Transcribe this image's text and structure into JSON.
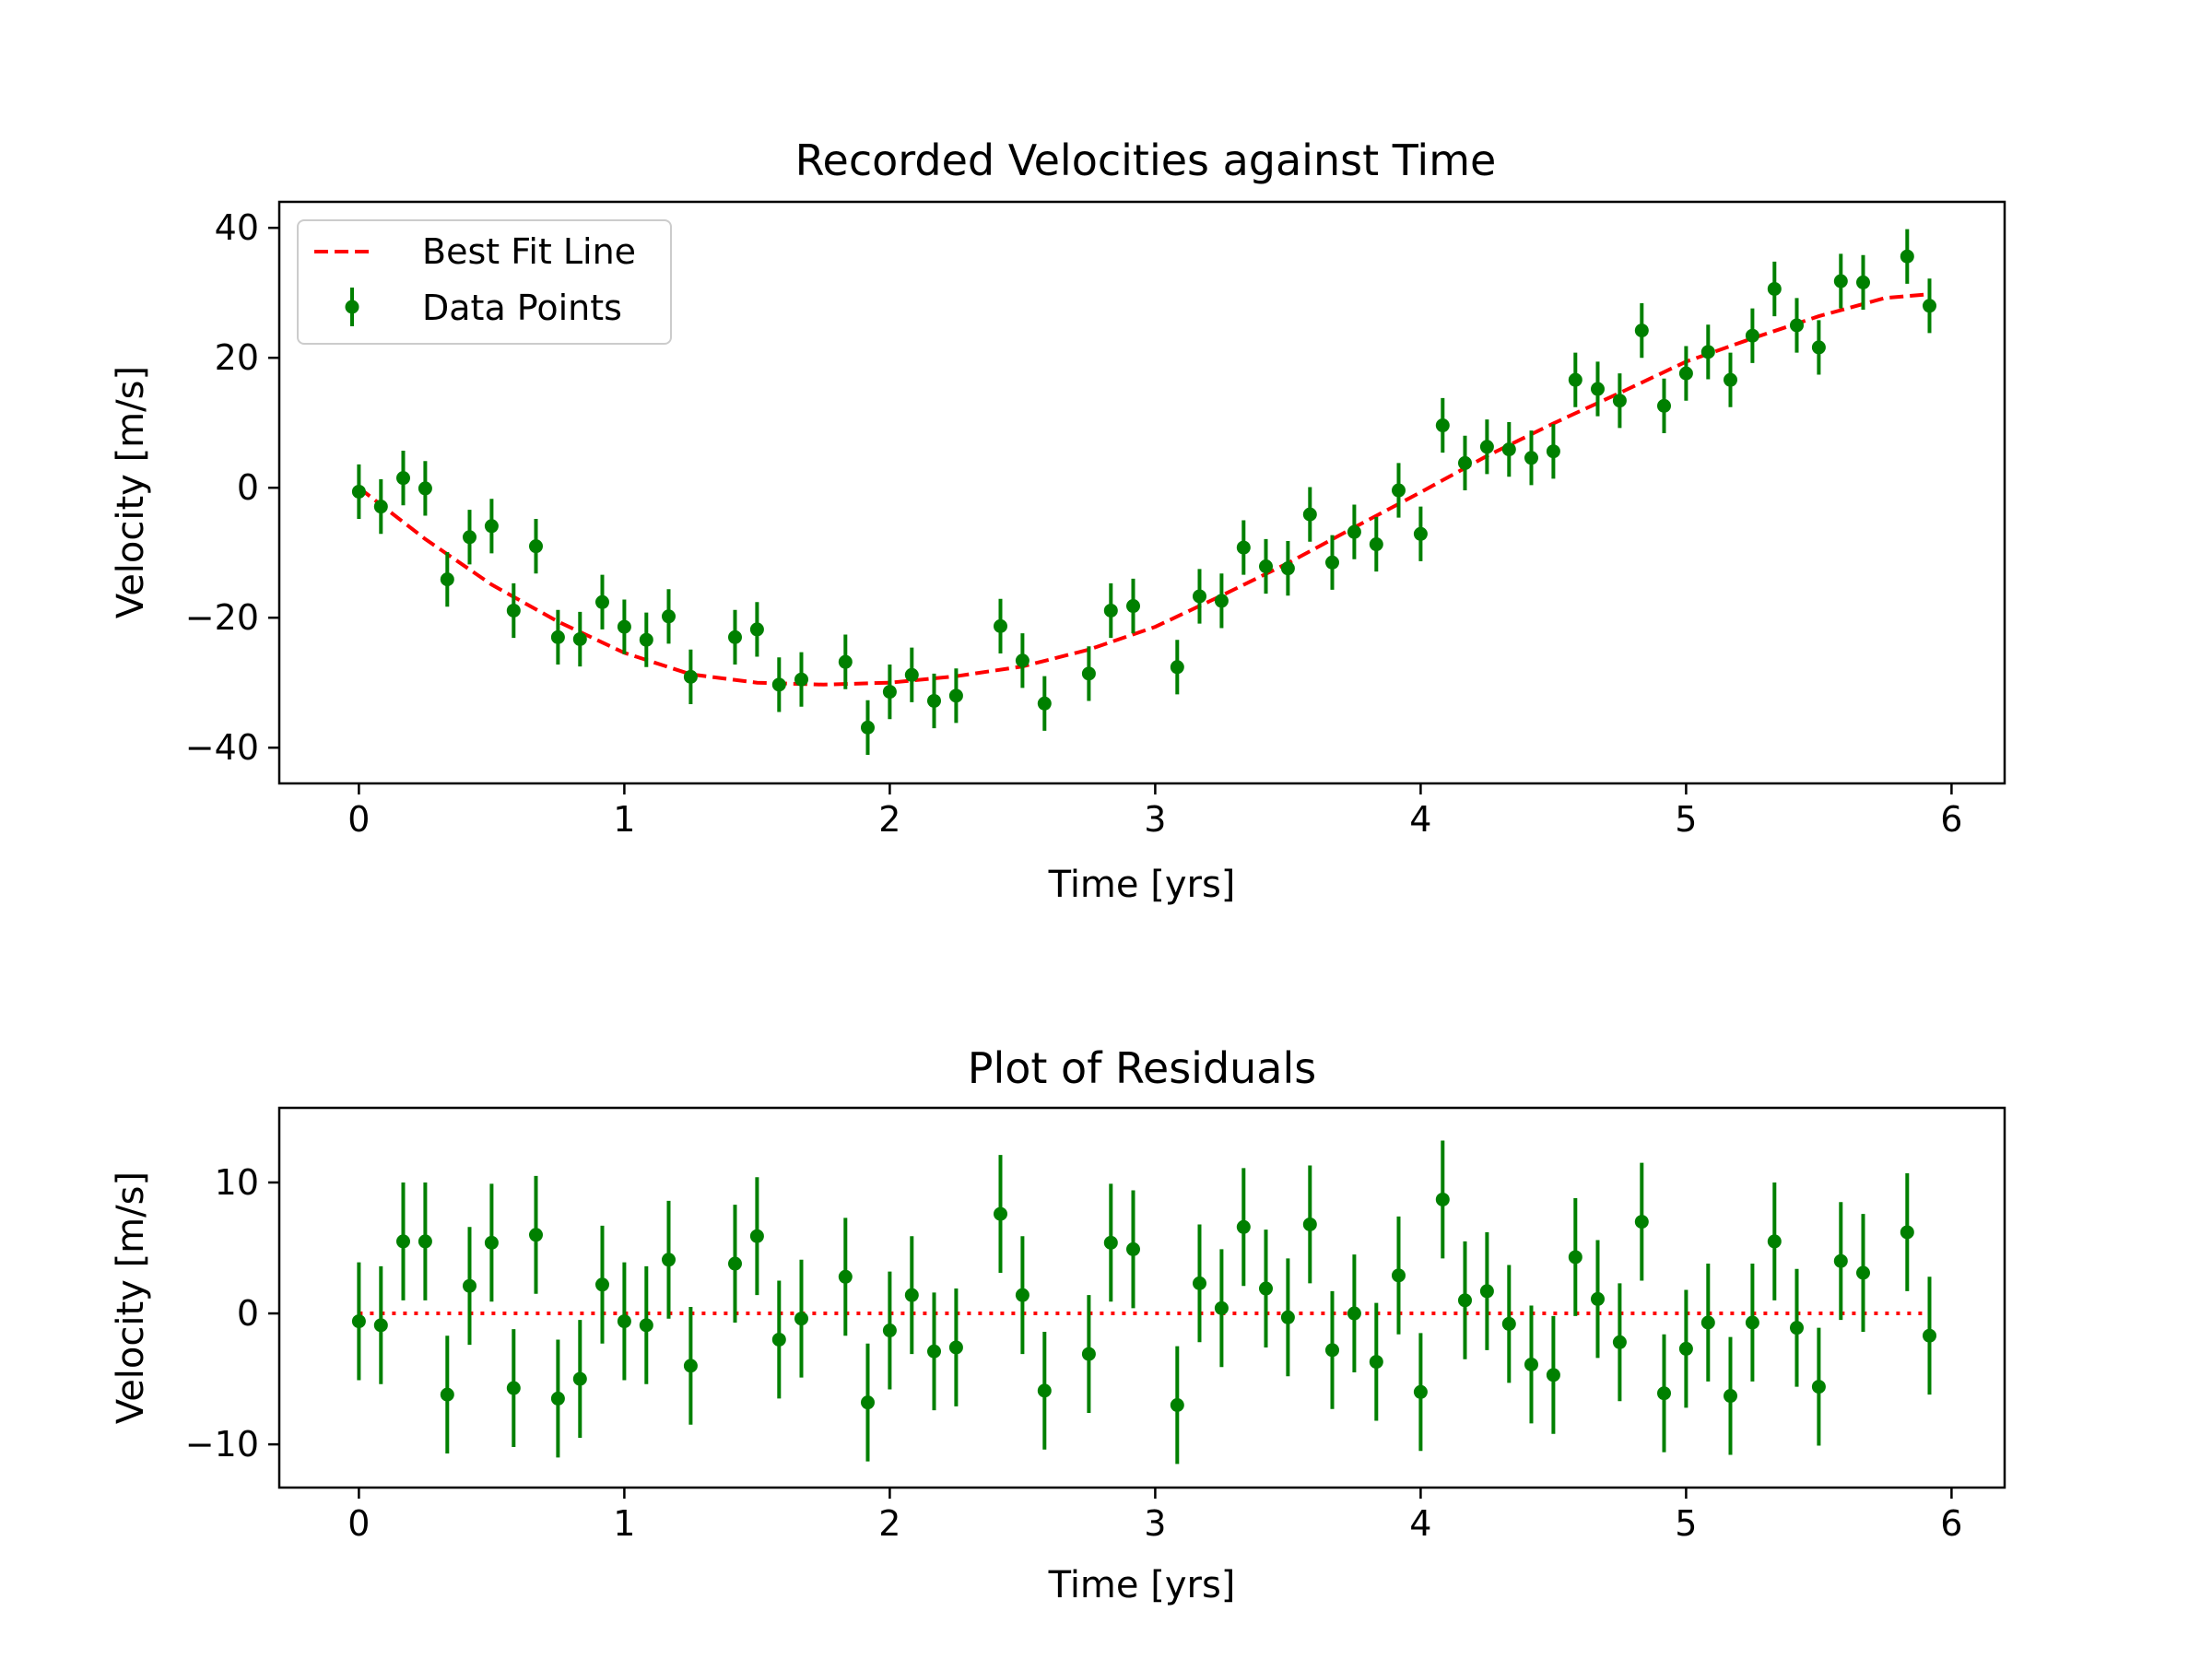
{
  "chart_data": [
    {
      "type": "scatter",
      "title": "Recorded Velocities against Time",
      "xlabel": "Time [yrs]",
      "ylabel": "Velocity [m/s]",
      "xlim": [
        -0.3,
        6.2
      ],
      "ylim": [
        -45.5,
        44
      ],
      "xticks": [
        0,
        1,
        2,
        3,
        4,
        5,
        6
      ],
      "xtick_labels": [
        "0",
        "1",
        "2",
        "3",
        "4",
        "5",
        "6"
      ],
      "yticks": [
        -40,
        -20,
        0,
        20,
        40
      ],
      "ytick_labels": [
        "−40",
        "−20",
        "0",
        "20",
        "40"
      ],
      "grid": false,
      "legend_position": "top-left",
      "series": [
        {
          "name": "Best Fit Line",
          "kind": "line",
          "style": "dashed",
          "color": "#ff0000",
          "x": [
            0,
            0.25,
            0.5,
            0.75,
            1.0,
            1.25,
            1.5,
            1.75,
            2.0,
            2.25,
            2.5,
            2.75,
            3.0,
            3.25,
            3.5,
            3.75,
            4.0,
            4.25,
            4.5,
            4.75,
            5.0,
            5.25,
            5.5,
            5.75,
            5.92
          ],
          "y": [
            0,
            -7.9,
            -14.9,
            -20.6,
            -25.4,
            -28.7,
            -30.0,
            -30.3,
            -30.0,
            -29.0,
            -27.5,
            -24.9,
            -21.4,
            -16.6,
            -11.6,
            -6.1,
            -0.7,
            4.9,
            9.9,
            14.6,
            19.4,
            23.0,
            26.4,
            29.2,
            29.8
          ]
        },
        {
          "name": "Data Points",
          "kind": "errorbar",
          "color": "#008000",
          "x": [
            0,
            0.083,
            0.167,
            0.25,
            0.333,
            0.417,
            0.5,
            0.583,
            0.667,
            0.75,
            0.833,
            0.917,
            1.0,
            1.083,
            1.167,
            1.25,
            1.417,
            1.5,
            1.583,
            1.667,
            1.833,
            1.917,
            2.0,
            2.083,
            2.167,
            2.25,
            2.417,
            2.5,
            2.583,
            2.75,
            2.833,
            2.917,
            3.083,
            3.167,
            3.25,
            3.333,
            3.417,
            3.5,
            3.583,
            3.667,
            3.75,
            3.833,
            3.917,
            4.0,
            4.083,
            4.167,
            4.25,
            4.333,
            4.417,
            4.5,
            4.583,
            4.667,
            4.75,
            4.833,
            4.917,
            5.0,
            5.083,
            5.167,
            5.25,
            5.333,
            5.417,
            5.5,
            5.583,
            5.667,
            5.833,
            5.917
          ],
          "y": [
            -0.6,
            -2.9,
            1.5,
            -0.1,
            -14.1,
            -7.6,
            -5.9,
            -18.9,
            -9.0,
            -23.0,
            -23.3,
            -17.6,
            -21.4,
            -23.4,
            -19.8,
            -29.1,
            -23.0,
            -21.8,
            -30.3,
            -29.5,
            -26.8,
            -36.9,
            -31.4,
            -28.8,
            -32.8,
            -32.0,
            -21.3,
            -26.6,
            -33.2,
            -28.6,
            -18.9,
            -18.2,
            -27.6,
            -16.7,
            -17.4,
            -9.2,
            -12.1,
            -12.4,
            -4.1,
            -11.5,
            -6.8,
            -8.7,
            -0.4,
            -7.1,
            9.6,
            3.8,
            6.3,
            5.9,
            4.6,
            5.6,
            16.6,
            15.2,
            13.4,
            24.2,
            12.6,
            17.6,
            20.9,
            16.6,
            23.4,
            30.6,
            25.0,
            21.6,
            31.8,
            31.6,
            35.6,
            28.0
          ],
          "yerr": 4.2
        }
      ]
    },
    {
      "type": "scatter",
      "title": "Plot of Residuals",
      "xlabel": "Time [yrs]",
      "ylabel": "Velocity [m/s]",
      "xlim": [
        -0.3,
        6.2
      ],
      "ylim": [
        -13.3,
        15.7
      ],
      "xticks": [
        0,
        1,
        2,
        3,
        4,
        5,
        6
      ],
      "xtick_labels": [
        "0",
        "1",
        "2",
        "3",
        "4",
        "5",
        "6"
      ],
      "yticks": [
        -10,
        0,
        10
      ],
      "ytick_labels": [
        "−10",
        "0",
        "10"
      ],
      "grid": false,
      "series": [
        {
          "kind": "line",
          "style": "dotted",
          "color": "#ff0000",
          "x": [
            0,
            5.92
          ],
          "y": [
            0,
            0
          ]
        },
        {
          "kind": "errorbar",
          "color": "#008000",
          "x": [
            0,
            0.083,
            0.167,
            0.25,
            0.333,
            0.417,
            0.5,
            0.583,
            0.667,
            0.75,
            0.833,
            0.917,
            1.0,
            1.083,
            1.167,
            1.25,
            1.417,
            1.5,
            1.583,
            1.667,
            1.833,
            1.917,
            2.0,
            2.083,
            2.167,
            2.25,
            2.417,
            2.5,
            2.583,
            2.75,
            2.833,
            2.917,
            3.083,
            3.167,
            3.25,
            3.333,
            3.417,
            3.5,
            3.583,
            3.667,
            3.75,
            3.833,
            3.917,
            4.0,
            4.083,
            4.167,
            4.25,
            4.333,
            4.417,
            4.5,
            4.583,
            4.667,
            4.75,
            4.833,
            4.917,
            5.0,
            5.083,
            5.167,
            5.25,
            5.333,
            5.417,
            5.5,
            5.583,
            5.667,
            5.833,
            5.917
          ],
          "y": [
            -0.6,
            -0.9,
            5.5,
            5.5,
            -6.2,
            2.1,
            5.4,
            -5.7,
            6.0,
            -6.5,
            -5.0,
            2.2,
            -0.6,
            -0.9,
            4.1,
            -4.0,
            3.8,
            5.9,
            -2.0,
            -0.4,
            2.8,
            -6.8,
            -1.3,
            1.4,
            -2.9,
            -2.6,
            7.6,
            1.4,
            -5.9,
            -3.1,
            5.4,
            4.9,
            -7.0,
            2.3,
            0.4,
            6.6,
            1.9,
            -0.3,
            6.8,
            -2.8,
            0.0,
            -3.7,
            2.9,
            -6.0,
            8.7,
            1.0,
            1.7,
            -0.8,
            -3.9,
            -4.7,
            4.3,
            1.1,
            -2.2,
            7.0,
            -6.1,
            -2.7,
            -0.7,
            -6.3,
            -0.7,
            5.5,
            -1.1,
            -5.6,
            4.0,
            3.1,
            6.2,
            -1.7
          ],
          "yerr": 4.5
        }
      ]
    }
  ]
}
